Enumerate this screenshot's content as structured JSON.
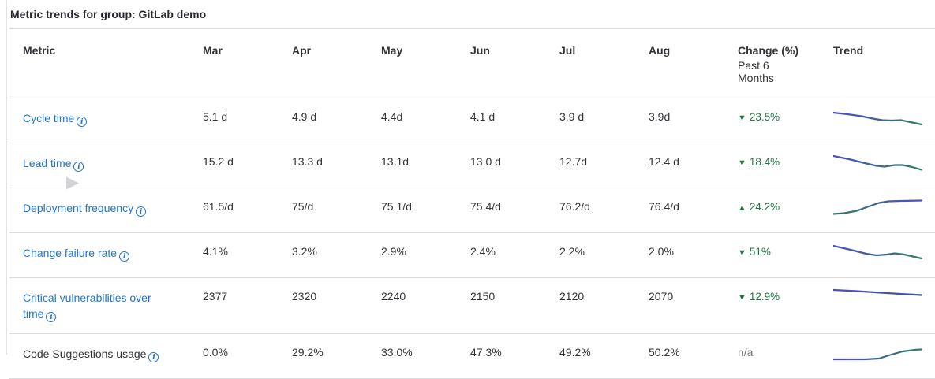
{
  "title": "Metric trends for group: GitLab demo",
  "icons": {
    "info_glyph": "i",
    "chevron_right": "▶"
  },
  "table": {
    "headers": {
      "metric": "Metric",
      "months": [
        "Mar",
        "Apr",
        "May",
        "Jun",
        "Jul",
        "Aug"
      ],
      "change_title": "Change (%)",
      "change_subtitle": "Past 6 Months",
      "trend": "Trend"
    },
    "rows": [
      {
        "label": "Cycle time",
        "is_link": true,
        "values": [
          "5.1 d",
          "4.9 d",
          "4.4d",
          "4.1 d",
          "3.9 d",
          "3.9d"
        ],
        "change": {
          "arrow": "▼",
          "value": "23.5%"
        },
        "trend": {
          "from": "#4e4ec4",
          "to": "#2f7d62",
          "points": [
            [
              0,
              7
            ],
            [
              18,
              9
            ],
            [
              36,
              11.5
            ],
            [
              50,
              14.5
            ],
            [
              62,
              16.5
            ],
            [
              74,
              17
            ],
            [
              86,
              16.5
            ],
            [
              98,
              19
            ],
            [
              112,
              22
            ]
          ]
        }
      },
      {
        "label": "Lead time",
        "is_link": true,
        "values": [
          "15.2 d",
          "13.3 d",
          "13.1d",
          "13.0 d",
          "12.7d",
          "12.4 d"
        ],
        "change": {
          "arrow": "▼",
          "value": "18.4%"
        },
        "trend": {
          "from": "#4e4ec4",
          "to": "#2f7d62",
          "points": [
            [
              0,
              5
            ],
            [
              20,
              9
            ],
            [
              40,
              14
            ],
            [
              55,
              17.5
            ],
            [
              65,
              18.5
            ],
            [
              78,
              16.5
            ],
            [
              88,
              16.5
            ],
            [
              100,
              19
            ],
            [
              112,
              22.5
            ]
          ]
        }
      },
      {
        "label": "Deployment frequency",
        "is_link": true,
        "values": [
          "61.5/d",
          "75/d",
          "75.1/d",
          "75.4/d",
          "76.2/d",
          "76.4/d"
        ],
        "change": {
          "arrow": "▲",
          "value": "24.2%"
        },
        "trend": {
          "from": "#2f7d62",
          "to": "#4e4ec4",
          "points": [
            [
              0,
              21.5
            ],
            [
              14,
              20.5
            ],
            [
              30,
              17.5
            ],
            [
              45,
              12
            ],
            [
              58,
              7.5
            ],
            [
              70,
              5.5
            ],
            [
              85,
              5
            ],
            [
              112,
              4.5
            ]
          ]
        }
      },
      {
        "label": "Change failure rate",
        "is_link": true,
        "values": [
          "4.1%",
          "3.2%",
          "2.9%",
          "2.4%",
          "2.2%",
          "2.0%"
        ],
        "change": {
          "arrow": "▼",
          "value": "51%"
        },
        "trend": {
          "from": "#4e4ec4",
          "to": "#2f7d62",
          "points": [
            [
              0,
              5
            ],
            [
              22,
              10
            ],
            [
              42,
              15
            ],
            [
              55,
              17
            ],
            [
              68,
              16
            ],
            [
              78,
              14.5
            ],
            [
              90,
              16
            ],
            [
              112,
              21
            ]
          ]
        }
      },
      {
        "label": "Critical vulnerabilities over time",
        "is_link": true,
        "values": [
          "2377",
          "2320",
          "2240",
          "2150",
          "2120",
          "2070"
        ],
        "change": {
          "arrow": "▼",
          "value": "12.9%"
        },
        "trend": {
          "from": "#4e4ec4",
          "to": "#41549b",
          "points": [
            [
              0,
              7
            ],
            [
              30,
              8.5
            ],
            [
              60,
              10.5
            ],
            [
              85,
              12
            ],
            [
              112,
              13.5
            ]
          ]
        }
      },
      {
        "label": "Code Suggestions usage",
        "is_link": false,
        "values": [
          "0.0%",
          "29.2%",
          "33.0%",
          "47.3%",
          "49.2%",
          "50.2%"
        ],
        "change": {
          "arrow": "",
          "value": "n/a"
        },
        "trend": {
          "from": "#4e4ec4",
          "to": "#2f7d62",
          "points": [
            [
              0,
              21
            ],
            [
              40,
              21
            ],
            [
              58,
              20
            ],
            [
              72,
              15.5
            ],
            [
              88,
              11
            ],
            [
              105,
              8.8
            ],
            [
              112,
              8.5
            ]
          ]
        }
      }
    ]
  }
}
